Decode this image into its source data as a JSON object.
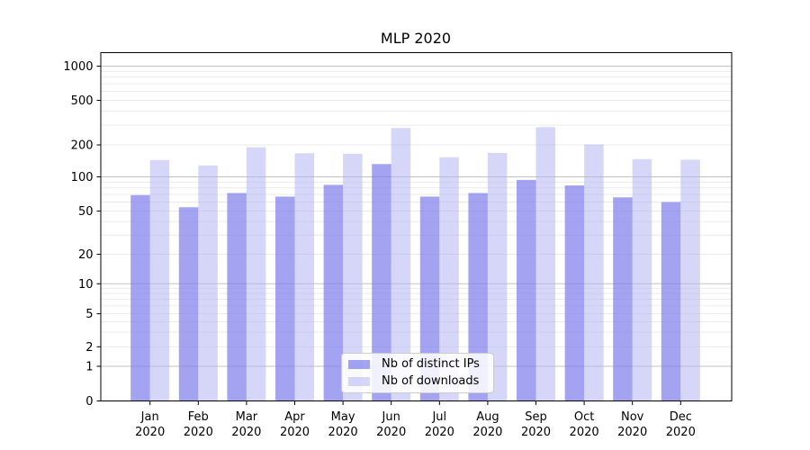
{
  "chart_data": {
    "type": "bar",
    "title": "MLP 2020",
    "categories": [
      "Jan 2020",
      "Feb 2020",
      "Mar 2020",
      "Apr 2020",
      "May 2020",
      "Jun 2020",
      "Jul 2020",
      "Aug 2020",
      "Sep 2020",
      "Oct 2020",
      "Nov 2020",
      "Dec 2020"
    ],
    "series": [
      {
        "name": "Nb of distinct IPs",
        "color": "#7c7cec",
        "fill_opacity": 0.7,
        "values": [
          69,
          54,
          72,
          67,
          85,
          132,
          67,
          72,
          94,
          84,
          66,
          60
        ]
      },
      {
        "name": "Nb of downloads",
        "color": "#b0b0f2",
        "fill_opacity": 0.52,
        "values": [
          144,
          128,
          190,
          167,
          165,
          283,
          153,
          168,
          288,
          202,
          147,
          145
        ]
      }
    ],
    "xlabel": "",
    "ylabel": "",
    "y_scale": "symlog",
    "y_ticks": [
      0,
      1,
      2,
      5,
      10,
      20,
      50,
      100,
      200,
      500,
      1000
    ],
    "ylim": [
      0,
      1350
    ],
    "grid": true,
    "legend_position": "lower center",
    "colors": {
      "major_gridline": "#c3c3c3",
      "minor_gridline": "#e9e9e9",
      "axis": "#000000",
      "text": "#000000"
    }
  }
}
